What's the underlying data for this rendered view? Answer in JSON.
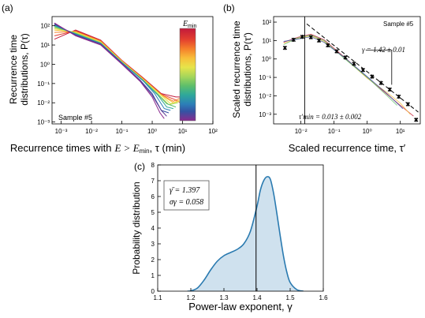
{
  "colors": {
    "kde_line": "#2a7ab0",
    "kde_fill": "#cfe1ee",
    "rainbow": [
      "#c21a3b",
      "#e33f2f",
      "#f57f2b",
      "#f8be3a",
      "#e7e44a",
      "#a7d65a",
      "#5fbf6a",
      "#2fa89a",
      "#2c7fb8",
      "#3552a3",
      "#5a3994",
      "#8a2a8e"
    ]
  },
  "chart_data": [
    {
      "type": "line",
      "panel_label": "(a)",
      "xlabel_text": "Recurrence times with",
      "xlabel_math": "E > E",
      "xlabel_sub": "min",
      "xlabel_tail": ", τ (min)",
      "ylabel_line1": "Recurrence time",
      "ylabel_line2": "distributions, P(τ)",
      "xscale": "log",
      "yscale": "log",
      "xlim": [
        0.0005,
        100
      ],
      "ylim": [
        0.0008,
        300
      ],
      "xticks": [
        "10⁻³",
        "10⁻²",
        "10⁻¹",
        "10⁰",
        "10¹",
        "10²"
      ],
      "yticks": [
        "10⁻³",
        "10⁻²",
        "10⁻¹",
        "10⁰",
        "10¹",
        "10²"
      ],
      "annotation": "Sample #5",
      "colorbar_title": "E",
      "colorbar_title_sub": "min",
      "series": [
        {
          "x": [
            0.0006,
            0.003,
            0.02,
            0.1,
            0.5,
            2,
            6,
            12
          ],
          "y": [
            20,
            60,
            18,
            1.6,
            0.2,
            0.03,
            0.02,
            0.02
          ]
        },
        {
          "x": [
            0.0006,
            0.003,
            0.02,
            0.1,
            0.5,
            2,
            6,
            12
          ],
          "y": [
            30,
            55,
            17,
            1.5,
            0.19,
            0.028,
            0.014,
            0.007
          ]
        },
        {
          "x": [
            0.0006,
            0.003,
            0.02,
            0.1,
            0.5,
            2,
            5,
            10
          ],
          "y": [
            45,
            50,
            16,
            1.5,
            0.18,
            0.026,
            0.012,
            0.02
          ]
        },
        {
          "x": [
            0.0006,
            0.003,
            0.02,
            0.1,
            0.5,
            2,
            5,
            9
          ],
          "y": [
            60,
            48,
            15,
            1.4,
            0.17,
            0.025,
            0.01,
            0.015
          ]
        },
        {
          "x": [
            0.0006,
            0.003,
            0.02,
            0.1,
            0.5,
            2,
            4,
            8
          ],
          "y": [
            70,
            45,
            14,
            1.4,
            0.16,
            0.024,
            0.009,
            0.012
          ]
        },
        {
          "x": [
            0.0006,
            0.003,
            0.02,
            0.1,
            0.5,
            1.5,
            3.5,
            7
          ],
          "y": [
            80,
            42,
            13,
            1.3,
            0.15,
            0.03,
            0.008,
            0.01
          ]
        },
        {
          "x": [
            0.0006,
            0.003,
            0.02,
            0.1,
            0.5,
            1.5,
            3,
            6
          ],
          "y": [
            90,
            40,
            13,
            1.3,
            0.15,
            0.028,
            0.009,
            0.006
          ]
        },
        {
          "x": [
            0.0006,
            0.003,
            0.02,
            0.1,
            0.5,
            1.5,
            3,
            5
          ],
          "y": [
            100,
            38,
            12,
            1.2,
            0.14,
            0.026,
            0.006,
            0.005
          ]
        },
        {
          "x": [
            0.0006,
            0.003,
            0.02,
            0.1,
            0.5,
            1.2,
            2.5,
            4
          ],
          "y": [
            110,
            36,
            12,
            1.2,
            0.14,
            0.03,
            0.005,
            0.004
          ]
        },
        {
          "x": [
            0.0006,
            0.003,
            0.02,
            0.1,
            0.4,
            1,
            2,
            3.5
          ],
          "y": [
            120,
            34,
            11,
            1.1,
            0.15,
            0.03,
            0.004,
            0.003
          ]
        },
        {
          "x": [
            0.0006,
            0.003,
            0.02,
            0.1,
            0.4,
            1,
            2,
            3
          ],
          "y": [
            130,
            32,
            11,
            1.1,
            0.14,
            0.025,
            0.004,
            0.002
          ]
        },
        {
          "x": [
            0.0006,
            0.003,
            0.02,
            0.1,
            0.4,
            1,
            1.8,
            2.5
          ],
          "y": [
            140,
            30,
            10,
            1.0,
            0.13,
            0.02,
            0.003,
            0.0015
          ]
        }
      ]
    },
    {
      "type": "scatter",
      "panel_label": "(b)",
      "xlabel_text": "Scaled recurrence time, τ′",
      "ylabel_line1": "Scaled recurrence time",
      "ylabel_line2": "distributions, P(τ′)",
      "xscale": "log",
      "yscale": "log",
      "xlim": [
        0.0015,
        40
      ],
      "ylim": [
        0.0003,
        200
      ],
      "xticks": [
        "10⁻²",
        "10⁻¹",
        "10⁰",
        "10¹"
      ],
      "yticks": [
        "10⁻³",
        "10⁻²",
        "10⁻¹",
        "10⁰",
        "10¹",
        "10²"
      ],
      "annotation": "Sample #5",
      "gamma_label": "γ = 1.42 ± 0.01",
      "tau_min_label": "τ′min = 0.013 ± 0.002",
      "tau_min": 0.013,
      "points": {
        "x": [
          0.0033,
          0.006,
          0.011,
          0.02,
          0.035,
          0.065,
          0.12,
          0.22,
          0.4,
          0.75,
          1.4,
          2.6,
          4.8,
          9,
          17,
          30
        ],
        "y": [
          4,
          11,
          16,
          15,
          10,
          5.5,
          2.6,
          1.2,
          0.55,
          0.25,
          0.11,
          0.05,
          0.022,
          0.009,
          0.0035,
          0.0005
        ]
      },
      "fit_line": {
        "x": [
          0.015,
          35
        ],
        "y": [
          80,
          0.0013
        ]
      },
      "series": [
        {
          "x": [
            0.003,
            0.008,
            0.02,
            0.05,
            0.2,
            1,
            4,
            10,
            25
          ],
          "y": [
            8,
            15,
            22,
            11,
            1.3,
            0.1,
            0.012,
            0.003,
            0.0008
          ]
        },
        {
          "x": [
            0.003,
            0.008,
            0.02,
            0.05,
            0.2,
            1,
            4,
            10,
            20
          ],
          "y": [
            7,
            13,
            18,
            9,
            1.2,
            0.09,
            0.015,
            0.004,
            0.001
          ]
        },
        {
          "x": [
            0.003,
            0.008,
            0.02,
            0.05,
            0.2,
            1,
            4,
            8
          ],
          "y": [
            6,
            14,
            20,
            10,
            1.1,
            0.1,
            0.01,
            0.003
          ]
        },
        {
          "x": [
            0.003,
            0.008,
            0.02,
            0.05,
            0.2,
            1,
            4,
            12
          ],
          "y": [
            9,
            12,
            16,
            8,
            1.25,
            0.11,
            0.013,
            0.002
          ]
        }
      ]
    },
    {
      "type": "area",
      "panel_label": "(c)",
      "xlabel_text": "Power-law exponent, γ",
      "ylabel_text": "Probability distribution",
      "xlim": [
        1.1,
        1.6
      ],
      "ylim": [
        0,
        8
      ],
      "xticks": [
        "1.1",
        "1.2",
        "1.3",
        "1.4",
        "1.5",
        "1.6"
      ],
      "yticks": [
        "0",
        "1",
        "2",
        "3",
        "4",
        "5",
        "6",
        "7",
        "8"
      ],
      "mean_line": 1.397,
      "legend_line1": "γ̄ = 1.397",
      "legend_line2": "σγ = 0.058",
      "x": [
        1.19,
        1.2,
        1.22,
        1.24,
        1.26,
        1.28,
        1.3,
        1.32,
        1.34,
        1.36,
        1.38,
        1.4,
        1.41,
        1.42,
        1.43,
        1.44,
        1.45,
        1.46,
        1.47,
        1.48,
        1.49,
        1.5,
        1.52,
        1.54
      ],
      "y": [
        0,
        0.02,
        0.2,
        0.7,
        1.35,
        1.9,
        2.25,
        2.45,
        2.65,
        3.0,
        3.8,
        5.4,
        6.4,
        7.0,
        7.25,
        7.1,
        6.2,
        4.9,
        3.5,
        2.2,
        1.2,
        0.55,
        0.1,
        0
      ]
    }
  ]
}
